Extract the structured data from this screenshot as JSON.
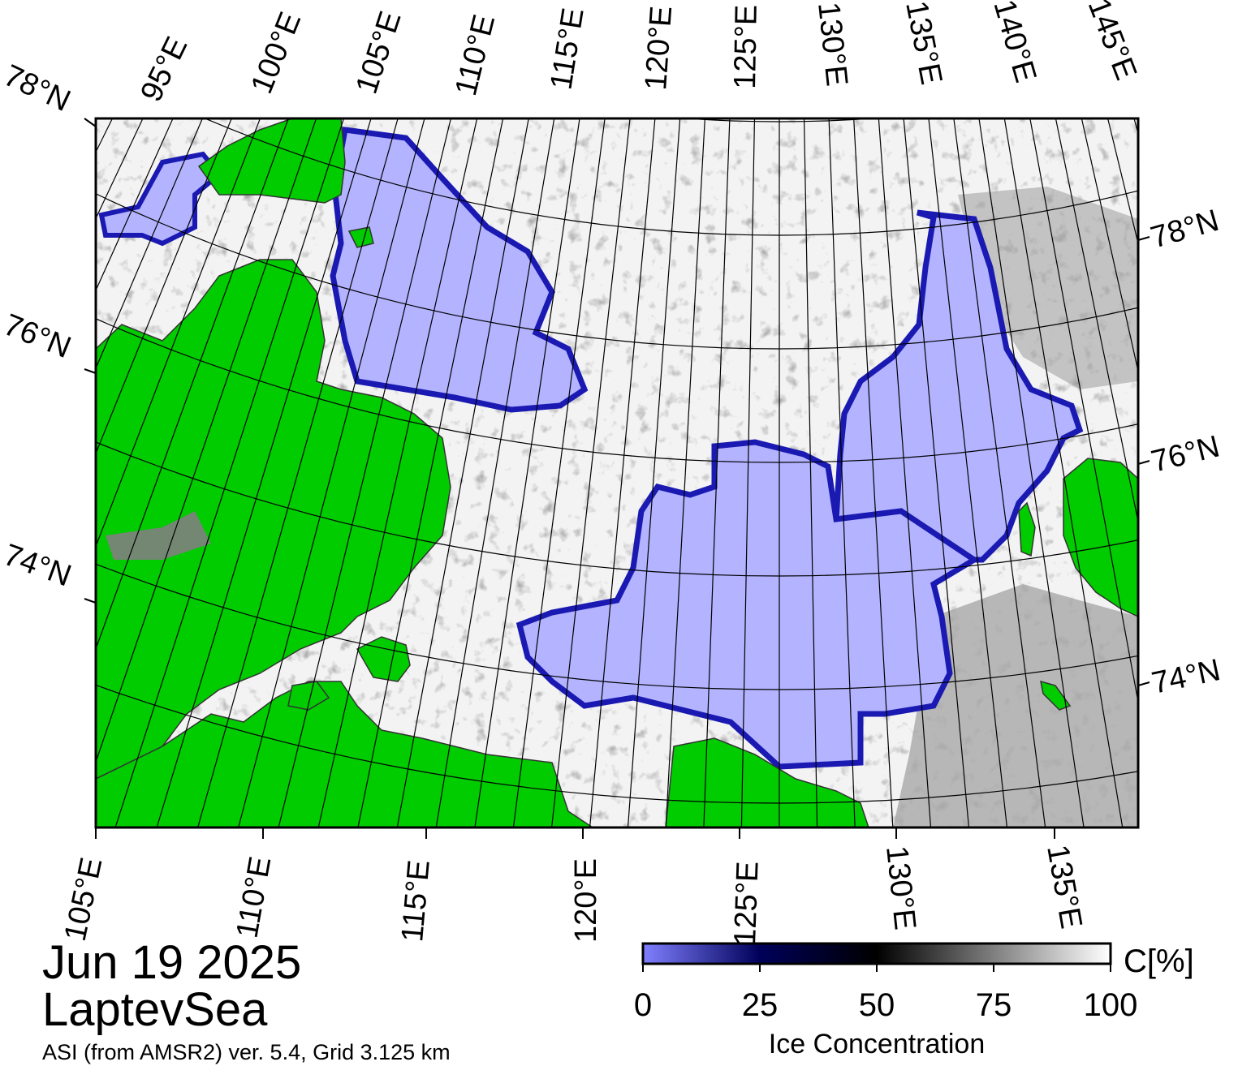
{
  "date": "Jun 19 2025",
  "region": "LaptevSea",
  "product": "ASI (from AMSR2) ver. 5.4,  Grid 3.125 km",
  "colorbar": {
    "title": "Ice Concentration",
    "unit": "C[%]",
    "ticks": [
      "0",
      "25",
      "50",
      "75",
      "100"
    ],
    "stops": [
      "#8080ff",
      "#00005a",
      "#000000",
      "#7f7f7f",
      "#ffffff"
    ]
  },
  "lon_labels_top": [
    "95°E",
    "100°E",
    "105°E",
    "110°E",
    "115°E",
    "120°E",
    "125°E",
    "130°E",
    "135°E",
    "140°E",
    "145°E"
  ],
  "lon_labels_bottom": [
    "105°E",
    "110°E",
    "115°E",
    "120°E",
    "125°E",
    "130°E",
    "135°E"
  ],
  "lat_labels_left": [
    "78°N",
    "76°N",
    "74°N"
  ],
  "lat_labels_right": [
    "78°N",
    "76°N",
    "74°N"
  ],
  "colors": {
    "land": "#00cc00",
    "open_water": "#b3b3ff",
    "ice_edge": "#1a1ab3",
    "high_ice": "#f2f2f2",
    "grid": "#000000",
    "land_ice": "#808080"
  }
}
